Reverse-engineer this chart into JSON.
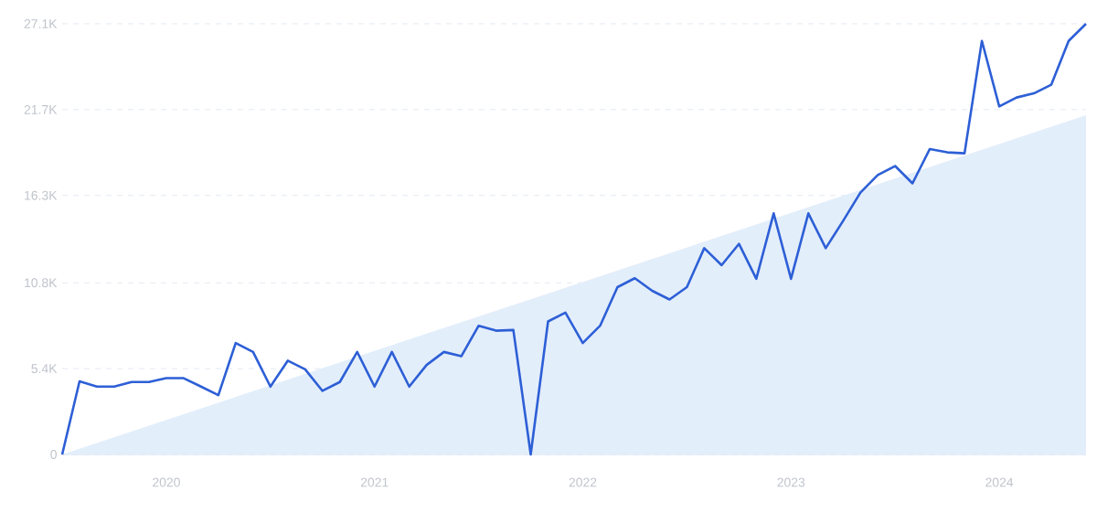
{
  "chart_data": {
    "type": "line",
    "x": [
      "2019-07",
      "2019-08",
      "2019-09",
      "2019-10",
      "2019-11",
      "2019-12",
      "2020-01",
      "2020-02",
      "2020-03",
      "2020-04",
      "2020-05",
      "2020-06",
      "2020-07",
      "2020-08",
      "2020-09",
      "2020-10",
      "2020-11",
      "2020-12",
      "2021-01",
      "2021-02",
      "2021-03",
      "2021-04",
      "2021-05",
      "2021-06",
      "2021-07",
      "2021-08",
      "2021-09",
      "2021-10",
      "2021-11",
      "2021-12",
      "2022-01",
      "2022-02",
      "2022-03",
      "2022-04",
      "2022-05",
      "2022-06",
      "2022-07",
      "2022-08",
      "2022-09",
      "2022-10",
      "2022-11",
      "2022-12",
      "2023-01",
      "2023-02",
      "2023-03",
      "2023-04",
      "2023-05",
      "2023-06",
      "2023-07",
      "2023-08",
      "2023-09",
      "2023-10",
      "2023-11",
      "2023-12",
      "2024-01",
      "2024-02",
      "2024-03",
      "2024-04",
      "2024-05",
      "2024-06"
    ],
    "series": [
      {
        "type": "area",
        "color": "#e3eefb",
        "x": [
          "2019-07",
          "2024-06"
        ],
        "values": [
          0,
          21350
        ]
      },
      {
        "color": "#2d5fd6",
        "values": [
          0,
          4600,
          4270,
          4270,
          4560,
          4560,
          4800,
          4800,
          4270,
          3730,
          7010,
          6450,
          4270,
          5900,
          5360,
          4000,
          4560,
          6450,
          4270,
          6450,
          4270,
          5630,
          6450,
          6180,
          8100,
          7790,
          7830,
          0,
          8370,
          8920,
          7010,
          8100,
          10530,
          11090,
          10300,
          9750,
          10530,
          12980,
          11910,
          13250,
          11050,
          15170,
          11050,
          15170,
          12980,
          14690,
          16480,
          17580,
          18150,
          17060,
          19220,
          19010,
          18950,
          26020,
          21900,
          22460,
          22720,
          23270,
          26020,
          27100
        ]
      }
    ],
    "xlim": [
      "2019-07",
      "2024-06"
    ],
    "xticks": [
      "2020",
      "2021",
      "2022",
      "2023",
      "2024"
    ],
    "ylim": [
      0,
      27100
    ],
    "yticks": [
      0,
      {
        "value": 5400,
        "label": "5.4K"
      },
      {
        "value": 10800,
        "label": "10.8K"
      },
      {
        "value": 16300,
        "label": "16.3K"
      },
      {
        "value": 21700,
        "label": "21.7K"
      },
      {
        "value": 27100,
        "label": "27.1K"
      }
    ],
    "grid": "y"
  }
}
